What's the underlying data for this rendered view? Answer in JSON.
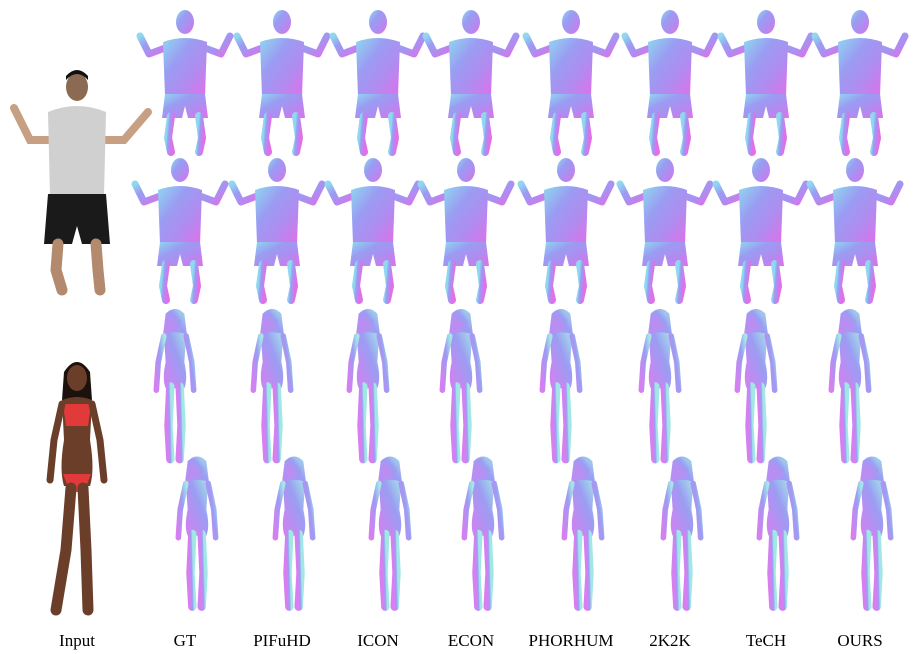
{
  "figure": {
    "column_labels": [
      "Input",
      "GT",
      "PIFuHD",
      "ICON",
      "ECON",
      "PHORHUM",
      "2K2K",
      "TeCH",
      "OURS"
    ]
  }
}
